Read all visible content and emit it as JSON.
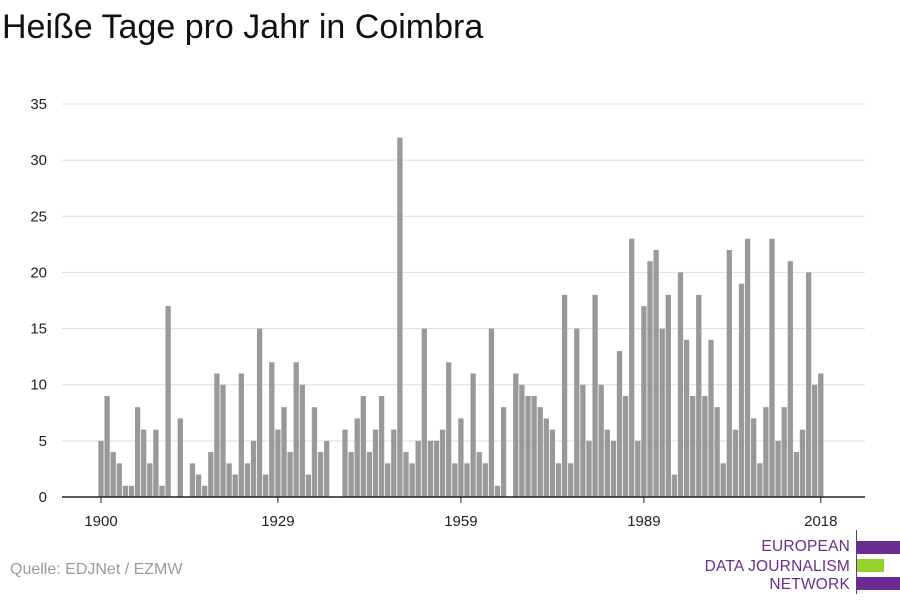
{
  "title": "Heiße Tage pro Jahr in Coimbra",
  "source": "Quelle: EDJNet / EZMW",
  "logo": {
    "lines": [
      "EUROPEAN",
      "DATA JOURNALISM",
      "NETWORK"
    ],
    "colors": {
      "purple": "#6a2c91",
      "green": "#95d22a"
    }
  },
  "colors": {
    "bar": "#999999",
    "grid": "#dddddd",
    "axis": "#222222"
  },
  "chart_data": {
    "type": "bar",
    "title": "Heiße Tage pro Jahr in Coimbra",
    "xlabel": "",
    "ylabel": "",
    "ylim": [
      0,
      35
    ],
    "yticks": [
      0,
      5,
      10,
      15,
      20,
      25,
      30,
      35
    ],
    "xticks": [
      1900,
      1929,
      1959,
      1989,
      2018
    ],
    "grid": true,
    "start_year": 1900,
    "values": [
      5,
      9,
      4,
      3,
      1,
      1,
      8,
      6,
      3,
      6,
      1,
      17,
      0,
      7,
      0,
      3,
      2,
      1,
      4,
      11,
      10,
      3,
      2,
      11,
      3,
      5,
      15,
      2,
      12,
      6,
      8,
      4,
      12,
      10,
      2,
      8,
      4,
      5,
      0,
      0,
      6,
      4,
      7,
      9,
      4,
      6,
      9,
      3,
      6,
      32,
      4,
      3,
      5,
      15,
      5,
      5,
      6,
      12,
      3,
      7,
      3,
      11,
      4,
      3,
      15,
      1,
      8,
      0,
      11,
      10,
      9,
      9,
      8,
      7,
      6,
      3,
      18,
      3,
      15,
      10,
      5,
      18,
      10,
      6,
      5,
      13,
      9,
      23,
      5,
      17,
      21,
      22,
      15,
      18,
      2,
      20,
      14,
      9,
      18,
      9,
      14,
      8,
      3,
      22,
      6,
      19,
      23,
      7,
      3,
      8,
      23,
      5,
      8,
      21,
      4,
      6,
      20,
      10,
      11
    ]
  }
}
